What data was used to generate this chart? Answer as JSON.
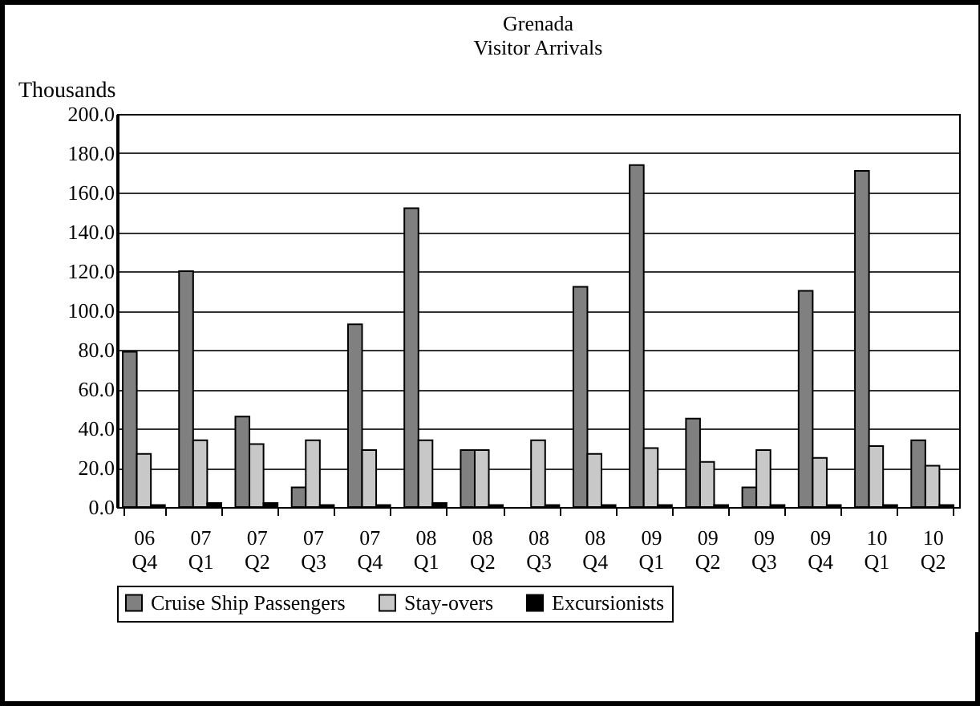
{
  "chart_data": {
    "type": "bar",
    "title": "Grenada",
    "subtitle": "Visitor Arrivals",
    "ylabel": "Thousands",
    "categories": [
      "06 Q4",
      "07 Q1",
      "07 Q2",
      "07 Q3",
      "07 Q4",
      "08 Q1",
      "08 Q2",
      "08 Q3",
      "08 Q4",
      "09 Q1",
      "09 Q2",
      "09 Q3",
      "09 Q4",
      "10 Q1",
      "10 Q2"
    ],
    "series": [
      {
        "name": "Cruise Ship Passengers",
        "color": "#808080",
        "values": [
          79,
          120,
          46,
          10,
          93,
          152,
          29,
          null,
          112,
          174,
          45,
          10,
          110,
          171,
          34
        ]
      },
      {
        "name": "Stay-overs",
        "color": "#c8c8c8",
        "values": [
          27,
          34,
          32,
          34,
          29,
          34,
          29,
          34,
          27,
          30,
          23,
          29,
          25,
          31,
          21
        ]
      },
      {
        "name": "Excursionists",
        "color": "#000000",
        "values": [
          1,
          2,
          2,
          1,
          1,
          2,
          1,
          1,
          1,
          1,
          1,
          1,
          1,
          1,
          1
        ]
      }
    ],
    "ylim": [
      0,
      200
    ],
    "yticks": [
      {
        "value": 0,
        "label": "0.0"
      },
      {
        "value": 20,
        "label": "20.0"
      },
      {
        "value": 40,
        "label": "40.0"
      },
      {
        "value": 60,
        "label": "60.0"
      },
      {
        "value": 80,
        "label": "80.0"
      },
      {
        "value": 100,
        "label": "100.0"
      },
      {
        "value": 120,
        "label": "120.0"
      },
      {
        "value": 140,
        "label": "140.0"
      },
      {
        "value": 160,
        "label": "160.0"
      },
      {
        "value": 180,
        "label": "180.0"
      },
      {
        "value": 200,
        "label": "200.0"
      }
    ],
    "grid": "y",
    "legend": "bottom"
  }
}
